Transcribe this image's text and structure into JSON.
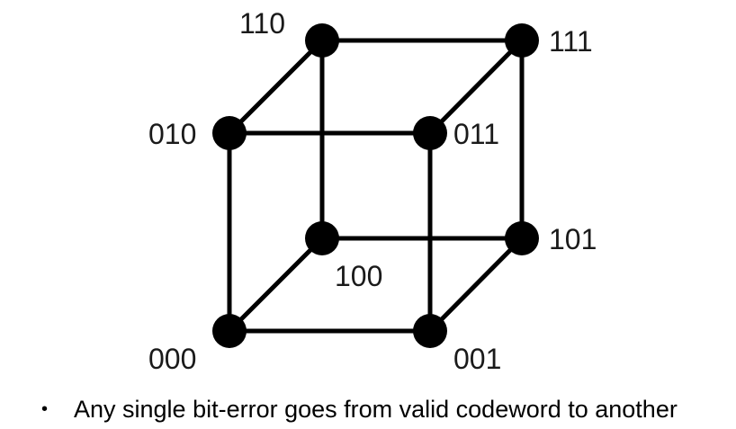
{
  "diagram": {
    "vertices": [
      {
        "id": "000",
        "label": "000"
      },
      {
        "id": "001",
        "label": "001"
      },
      {
        "id": "010",
        "label": "010"
      },
      {
        "id": "011",
        "label": "011"
      },
      {
        "id": "100",
        "label": "100"
      },
      {
        "id": "101",
        "label": "101"
      },
      {
        "id": "110",
        "label": "110"
      },
      {
        "id": "111",
        "label": "111"
      }
    ],
    "edges": [
      [
        "000",
        "001"
      ],
      [
        "000",
        "010"
      ],
      [
        "000",
        "100"
      ],
      [
        "001",
        "011"
      ],
      [
        "001",
        "101"
      ],
      [
        "010",
        "011"
      ],
      [
        "010",
        "110"
      ],
      [
        "011",
        "111"
      ],
      [
        "100",
        "101"
      ],
      [
        "100",
        "110"
      ],
      [
        "101",
        "111"
      ],
      [
        "110",
        "111"
      ]
    ]
  },
  "caption": {
    "bullet": "•",
    "text": "Any single bit-error goes from valid codeword to another"
  }
}
